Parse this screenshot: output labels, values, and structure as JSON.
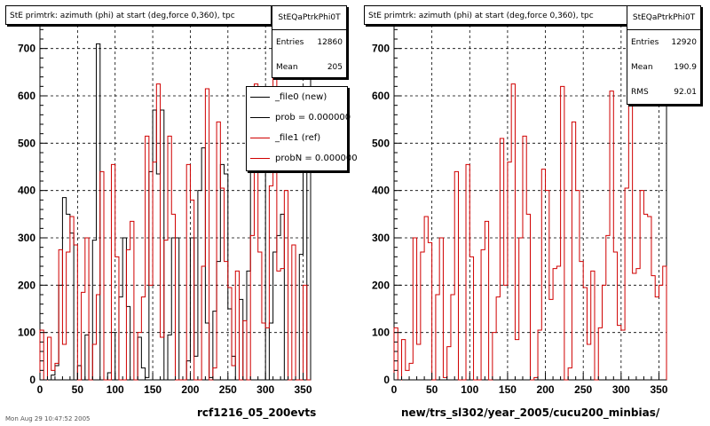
{
  "footer_text": "Mon Aug 29 10:47:52 2005",
  "colors": {
    "new": "#000000",
    "ref": "#d00000"
  },
  "panels": [
    {
      "title": "StE primtrk: azimuth (phi) at start (deg,force 0,360), tpc",
      "stats": {
        "name": "StEQaPtrkPhi0T",
        "rows": [
          {
            "label": "Entries",
            "value": "12860"
          },
          {
            "label": "Mean",
            "value": "205"
          }
        ]
      },
      "legend": [
        {
          "label": "_file0 (new)",
          "color": "#000000"
        },
        {
          "label": "prob = 0.000000",
          "color": "#000000"
        },
        {
          "label": "_file1 (ref)",
          "color": "#d00000"
        },
        {
          "label": "probN = 0.000000",
          "color": "#d00000"
        }
      ],
      "caption": "rcf1216_05_200evts"
    },
    {
      "title": "StE primtrk: azimuth (phi) at start (deg,force 0,360), tpc",
      "stats": {
        "name": "StEQaPtrkPhi0T",
        "rows": [
          {
            "label": "Entries",
            "value": "12920"
          },
          {
            "label": "Mean",
            "value": "190.9"
          },
          {
            "label": "RMS",
            "value": "92.01"
          }
        ]
      },
      "legend": [],
      "caption": "new/trs_sl302/year_2005/cucu200_minbias/"
    }
  ],
  "chart_data": [
    {
      "type": "histogram",
      "title": "StE primtrk: azimuth (phi) at start (deg,force 0,360), tpc",
      "xlabel": "rcf1216_05_200evts",
      "xlim": [
        0,
        360
      ],
      "ylim": [
        0,
        750
      ],
      "bin_width": 5,
      "xticks": [
        0,
        50,
        100,
        150,
        200,
        250,
        300,
        350
      ],
      "yticks": [
        0,
        100,
        200,
        300,
        400,
        500,
        600,
        700
      ],
      "grid": true,
      "series": [
        {
          "name": "_file0 (new)",
          "color": "#000000",
          "values": [
            0,
            0,
            0,
            10,
            30,
            200,
            385,
            350,
            310,
            0,
            30,
            0,
            95,
            0,
            295,
            710,
            0,
            0,
            15,
            100,
            0,
            175,
            300,
            155,
            0,
            0,
            90,
            25,
            5,
            440,
            570,
            435,
            570,
            0,
            95,
            300,
            300,
            0,
            0,
            40,
            300,
            50,
            400,
            490,
            120,
            5,
            145,
            250,
            455,
            435,
            150,
            50,
            0,
            170,
            0,
            230,
            565,
            505,
            500,
            480,
            0,
            120,
            270,
            305,
            350,
            0,
            0,
            0,
            0,
            265,
            450,
            0
          ]
        },
        {
          "name": "_file1 (ref)",
          "color": "#d00000",
          "values": [
            105,
            0,
            90,
            20,
            35,
            275,
            75,
            270,
            345,
            285,
            0,
            185,
            300,
            0,
            75,
            180,
            440,
            0,
            0,
            455,
            260,
            0,
            0,
            275,
            335,
            0,
            100,
            175,
            515,
            200,
            460,
            625,
            90,
            295,
            515,
            350,
            0,
            0,
            0,
            455,
            380,
            0,
            0,
            240,
            615,
            0,
            25,
            545,
            405,
            250,
            195,
            30,
            230,
            0,
            125,
            0,
            305,
            625,
            270,
            120,
            110,
            410,
            710,
            230,
            235,
            400,
            0,
            285,
            0,
            0,
            200,
            0
          ]
        },
        {
          "name": "new/trs_sl302/year_2005/cucu200_minbias/",
          "color": "#d00000",
          "values": [
            110,
            0,
            85,
            20,
            35,
            300,
            75,
            270,
            345,
            290,
            0,
            180,
            300,
            5,
            70,
            180,
            440,
            0,
            0,
            455,
            260,
            0,
            0,
            275,
            335,
            0,
            100,
            175,
            510,
            200,
            460,
            625,
            85,
            300,
            515,
            350,
            0,
            5,
            105,
            445,
            400,
            170,
            235,
            240,
            620,
            0,
            25,
            545,
            400,
            250,
            195,
            75,
            230,
            0,
            110,
            200,
            305,
            610,
            270,
            115,
            105,
            405,
            710,
            225,
            235,
            400,
            350,
            345,
            220,
            175,
            200,
            240
          ]
        }
      ]
    }
  ]
}
